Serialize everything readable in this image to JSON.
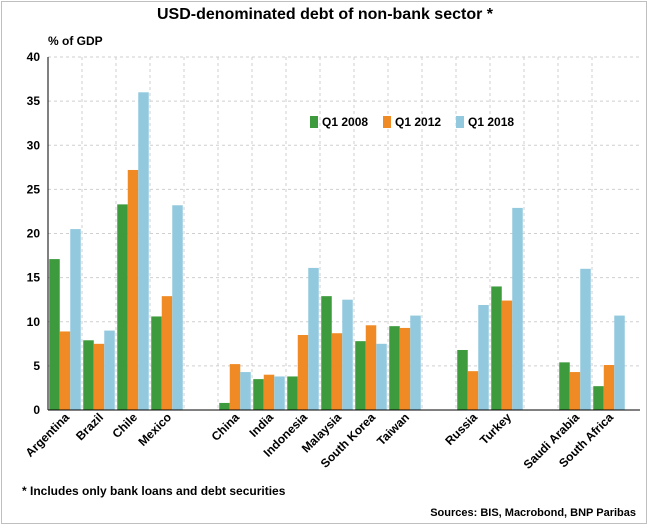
{
  "chart_data": {
    "type": "bar",
    "title": "USD-denominated debt of non-bank sector *",
    "ylabel": "% of GDP",
    "xlabel": "",
    "ylim": [
      0,
      40
    ],
    "yticks": [
      0,
      5,
      10,
      15,
      20,
      25,
      30,
      35,
      40
    ],
    "legend_position": "top-right",
    "categories": [
      "Argentina",
      "Brazil",
      "Chile",
      "Mexico",
      "China",
      "India",
      "Indonesia",
      "Malaysia",
      "South Korea",
      "Taiwan",
      "Russia",
      "Turkey",
      "Saudi Arabia",
      "South Africa"
    ],
    "groups": [
      [
        "Argentina",
        "Brazil",
        "Chile",
        "Mexico"
      ],
      [
        "China",
        "India",
        "Indonesia",
        "Malaysia",
        "South Korea",
        "Taiwan"
      ],
      [
        "Russia",
        "Turkey"
      ],
      [
        "Saudi Arabia",
        "South Africa"
      ]
    ],
    "series": [
      {
        "name": "Q1 2008",
        "color": "#3d9a3d",
        "values": [
          17.1,
          7.9,
          23.3,
          10.6,
          0.8,
          3.5,
          3.8,
          12.9,
          7.8,
          9.5,
          6.8,
          14.0,
          5.4,
          2.7
        ]
      },
      {
        "name": "Q1 2012",
        "color": "#f08a24",
        "values": [
          8.9,
          7.5,
          27.2,
          12.9,
          5.2,
          4.0,
          8.5,
          8.7,
          9.6,
          9.3,
          4.4,
          12.4,
          4.3,
          5.1
        ]
      },
      {
        "name": "Q1 2018",
        "color": "#92c9de",
        "values": [
          20.5,
          9.0,
          36.0,
          23.2,
          4.3,
          3.8,
          16.1,
          12.5,
          7.5,
          10.7,
          11.9,
          22.9,
          16.0,
          10.7
        ]
      }
    ],
    "footnote": "* Includes only bank loans and debt securities",
    "source": "Sources: BIS, Macrobond, BNP Paribas"
  }
}
